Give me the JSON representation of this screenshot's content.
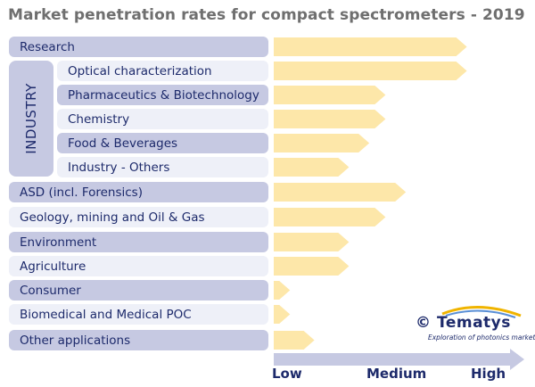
{
  "title": "Market penetration rates for compact spectrometers - 2019",
  "group_label": "INDUSTRY",
  "chart_data": {
    "type": "bar",
    "orientation": "horizontal",
    "title": "Market penetration rates for compact spectrometers - 2019",
    "categories": [
      "Research",
      "Optical characterization",
      "Pharmaceutics & Biotechnology",
      "Chemistry",
      "Food & Beverages",
      "Industry - Others",
      "ASD (incl. Forensics)",
      "Geology, mining and Oil & Gas",
      "Environment",
      "Agriculture",
      "Consumer",
      "Biomedical and Medical POC",
      "Other applications"
    ],
    "groups": [
      "",
      "INDUSTRY",
      "INDUSTRY",
      "INDUSTRY",
      "INDUSTRY",
      "INDUSTRY",
      "",
      "",
      "",
      "",
      "",
      "",
      ""
    ],
    "values": [
      0.95,
      0.95,
      0.55,
      0.55,
      0.47,
      0.37,
      0.65,
      0.55,
      0.37,
      0.37,
      0.08,
      0.08,
      0.2
    ],
    "xlim": [
      0,
      1
    ],
    "x_scale_labels": [
      "Low",
      "Medium",
      "High"
    ],
    "bar_color": "#fde7a9",
    "row_color_dark": "#c6c9e2",
    "row_color_light": "#eef0f8",
    "arrow_color": "#c6c9e2"
  },
  "logo": {
    "copyright": "©",
    "brand": "Tematys",
    "tagline": "Exploration of photonics markets"
  }
}
